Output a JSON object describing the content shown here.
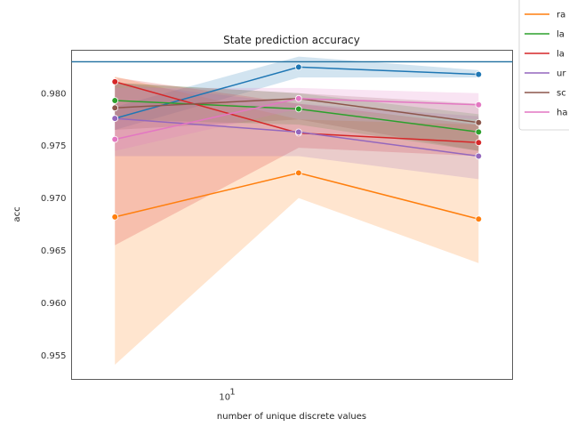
{
  "chart_data": {
    "type": "line",
    "title": "State prediction accuracy",
    "xlabel": "number of unique discrete values",
    "ylabel": "acc",
    "x_scale": "log",
    "x_tick_labels": [
      "10^1"
    ],
    "y_ticks": [
      "0.955",
      "0.960",
      "0.965",
      "0.970",
      "0.975",
      "0.980"
    ],
    "ylim": [
      0.9527,
      0.9841
    ],
    "grid": false,
    "legend_placement": "upper-right, outside",
    "reference_line": {
      "y": 0.983,
      "color": "#1f6f9f"
    },
    "x": [
      5,
      16,
      50
    ],
    "series": [
      {
        "name": "",
        "color": "#1f77b4",
        "values": [
          0.9776,
          0.9825,
          0.9818
        ],
        "lower": [
          0.9765,
          0.9815,
          0.9815
        ],
        "upper": [
          0.9787,
          0.9835,
          0.9822
        ]
      },
      {
        "name": "ra",
        "color": "#ff7f0e",
        "values": [
          0.9682,
          0.9724,
          0.968
        ],
        "lower": [
          0.9541,
          0.97,
          0.9638
        ],
        "upper": [
          0.9816,
          0.9775,
          0.977
        ]
      },
      {
        "name": "la",
        "color": "#2ca02c",
        "values": [
          0.9793,
          0.9785,
          0.9763
        ],
        "lower": [
          0.9775,
          0.977,
          0.9745
        ],
        "upper": [
          0.981,
          0.98,
          0.978
        ]
      },
      {
        "name": "la",
        "color": "#d62728",
        "values": [
          0.9811,
          0.9762,
          0.9753
        ],
        "lower": [
          0.9655,
          0.9748,
          0.974
        ],
        "upper": [
          0.9815,
          0.979,
          0.977
        ]
      },
      {
        "name": "ur",
        "color": "#9467bd",
        "values": [
          0.9776,
          0.9763,
          0.974
        ],
        "lower": [
          0.974,
          0.974,
          0.9718
        ],
        "upper": [
          0.981,
          0.979,
          0.9778
        ]
      },
      {
        "name": "sc",
        "color": "#8c564b",
        "values": [
          0.9786,
          0.9795,
          0.9772
        ],
        "lower": [
          0.9765,
          0.9775,
          0.9745
        ],
        "upper": [
          0.981,
          0.98,
          0.979
        ]
      },
      {
        "name": "ha",
        "color": "#e377c2",
        "values": [
          0.9756,
          0.9795,
          0.9789
        ],
        "lower": [
          0.9745,
          0.9785,
          0.9775
        ],
        "upper": [
          0.9805,
          0.9805,
          0.98
        ]
      }
    ]
  }
}
